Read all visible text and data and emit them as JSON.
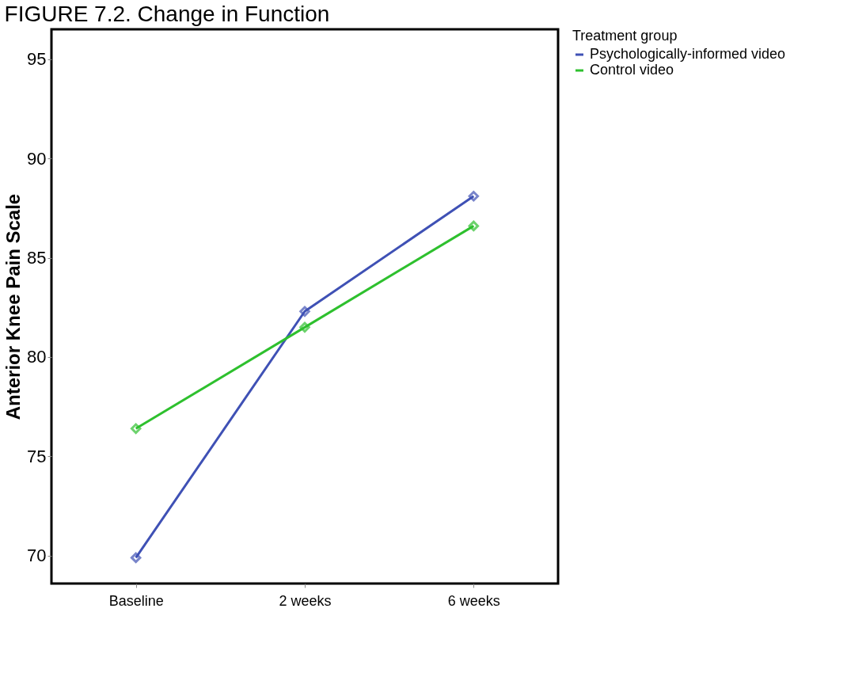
{
  "chart_data": {
    "type": "line",
    "title": "FIGURE 7.2. Change in Function",
    "ylabel": "Anterior Knee Pain Scale",
    "legend_title": "Treatment group",
    "categories": [
      "Baseline",
      "2 weeks",
      "6 weeks"
    ],
    "series": [
      {
        "name": "Psychologically-informed video",
        "color": "#3f51b5",
        "values": [
          69.9,
          82.3,
          88.1
        ]
      },
      {
        "name": "Control video",
        "color": "#2ec02e",
        "values": [
          76.4,
          81.5,
          86.6
        ]
      }
    ],
    "ylim": [
      68.6,
      96.5
    ],
    "yticks": [
      70,
      75,
      80,
      85,
      90,
      95
    ],
    "grid": false,
    "legend": "top right",
    "marker": "diamond",
    "line_style": "solid"
  }
}
